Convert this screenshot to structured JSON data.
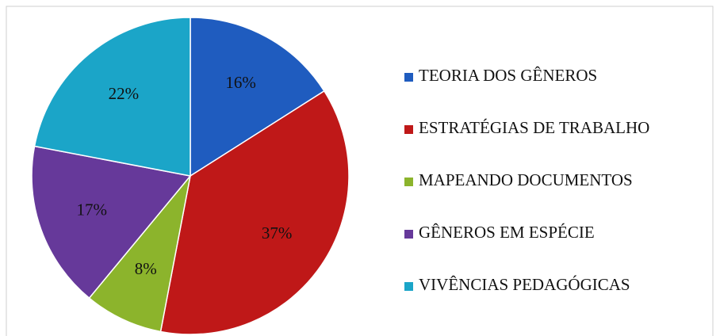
{
  "chart_data": {
    "type": "pie",
    "categories": [
      "TEORIA DOS GÊNEROS",
      "ESTRATÉGIAS DE TRABALHO",
      "MAPEANDO DOCUMENTOS",
      "GÊNEROS EM ESPÉCIE",
      "VIVÊNCIAS PEDAGÓGICAS"
    ],
    "values": [
      16,
      37,
      8,
      17,
      22
    ],
    "value_labels": [
      "16%",
      "37%",
      "8%",
      "17%",
      "22%"
    ],
    "colors": [
      "#1f5cbf",
      "#bf1818",
      "#8cb42c",
      "#66399a",
      "#1ba5c8"
    ],
    "legend": "right"
  }
}
